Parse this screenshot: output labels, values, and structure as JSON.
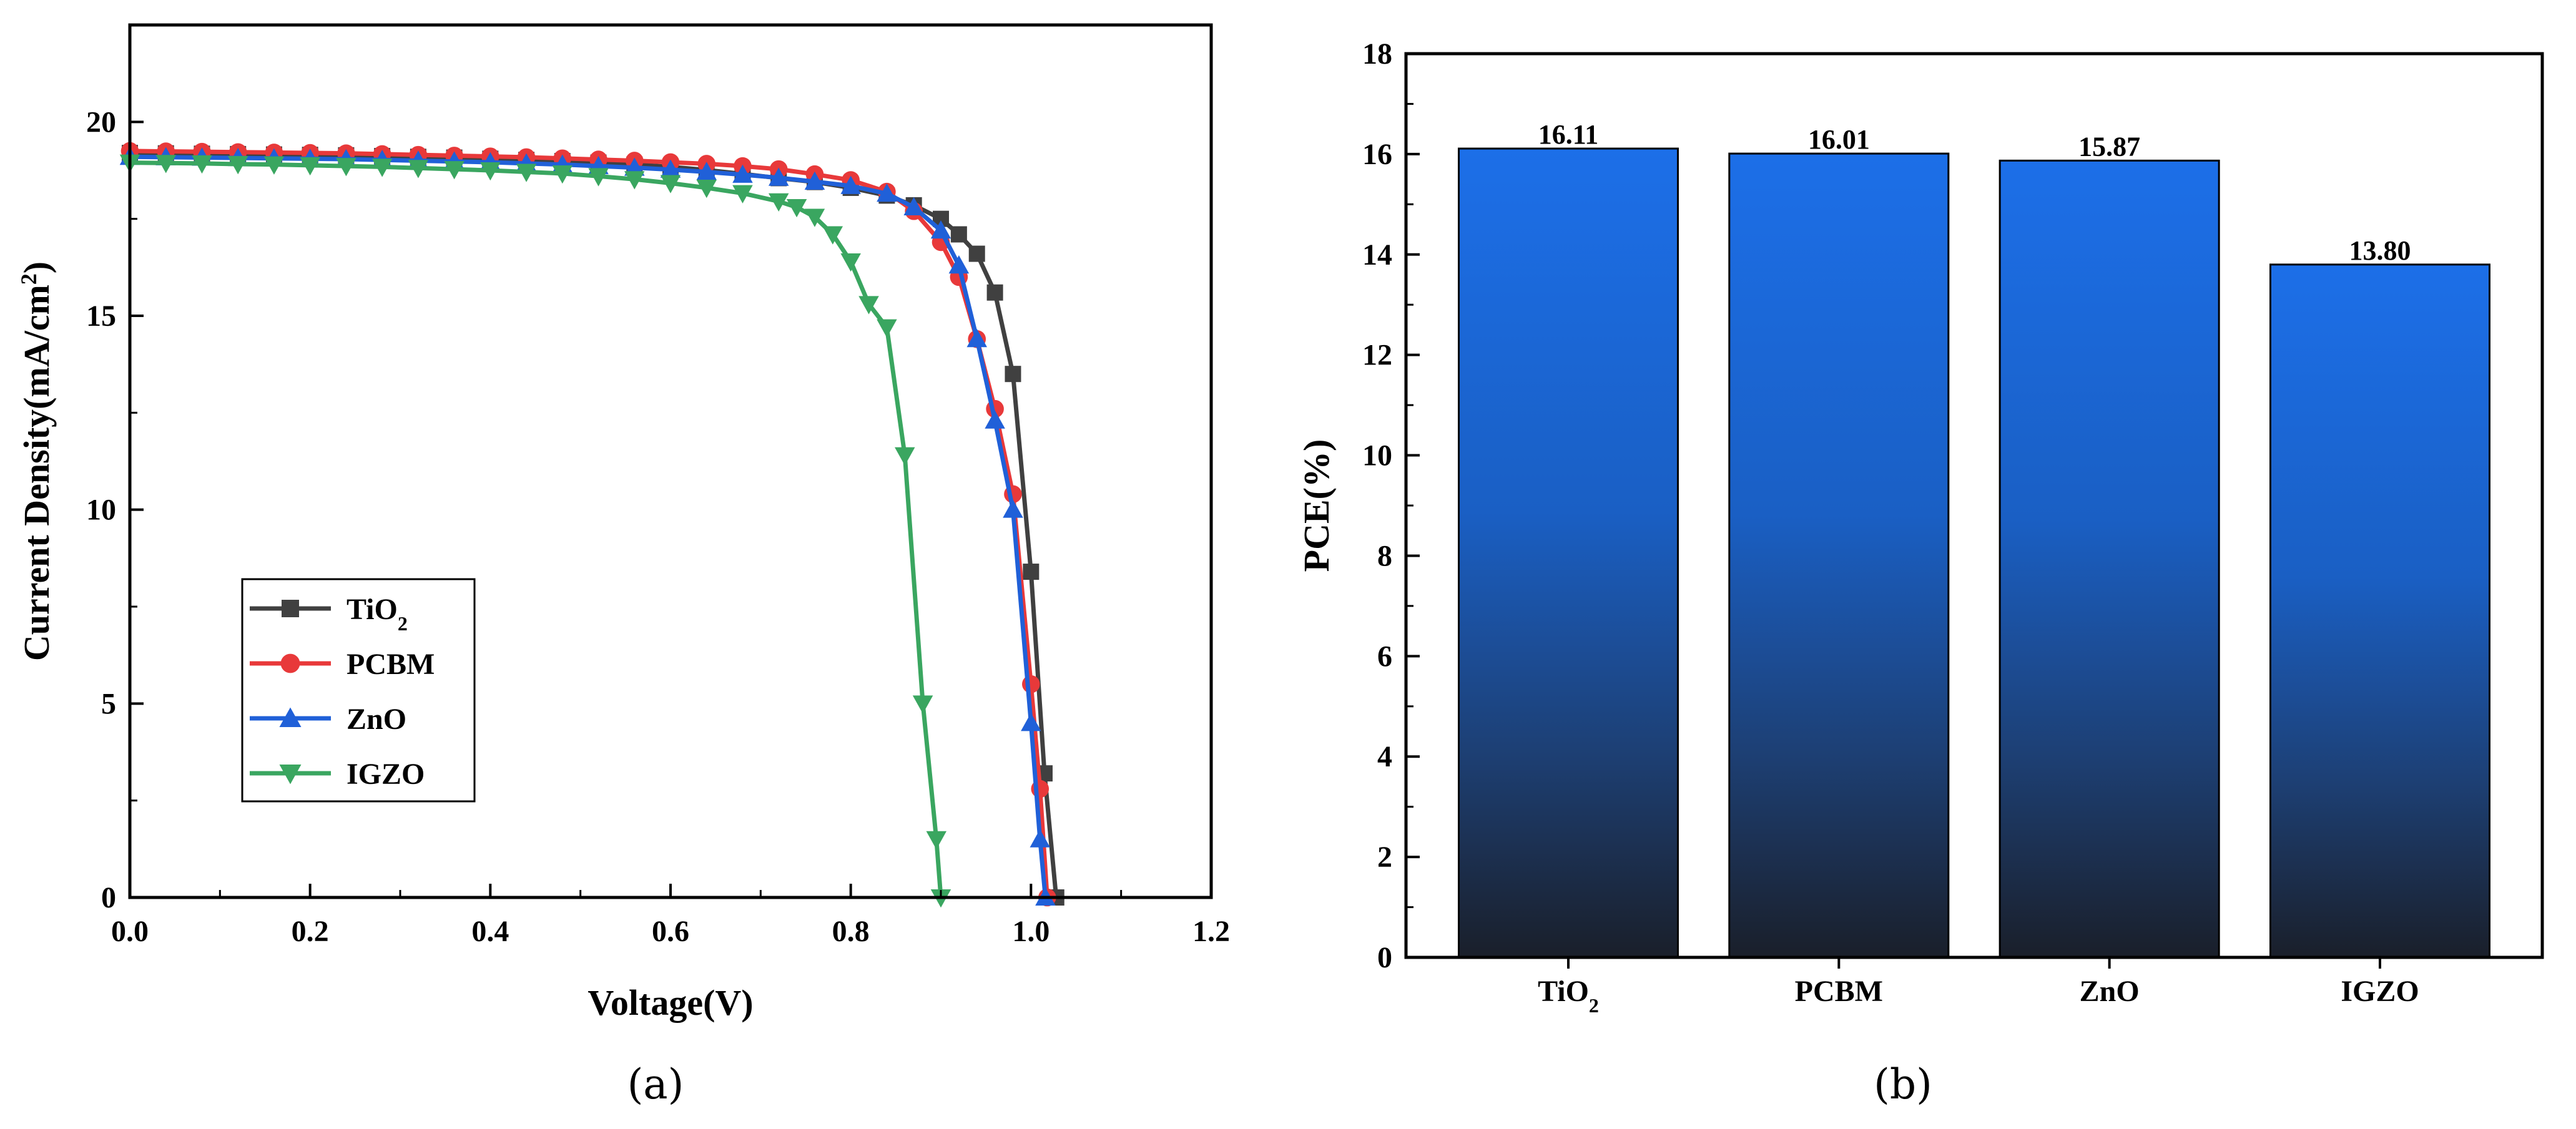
{
  "chart_data": [
    {
      "type": "line",
      "panel": "(a)",
      "xlabel": "Voltage(V)",
      "ylabel": "Current Density(mA/cm²)",
      "ylabel_base": "Current Density(mA/cm",
      "ylabel_sup": "2",
      "ylabel_end": ")",
      "xlim": [
        0.0,
        1.2
      ],
      "ylim": [
        0,
        22.5
      ],
      "xticks": [
        "0.0",
        "0.2",
        "0.4",
        "0.6",
        "0.8",
        "1.0",
        "1.2"
      ],
      "yticks": [
        "0",
        "5",
        "10",
        "15",
        "20"
      ],
      "legend_position": "lower-left",
      "series": [
        {
          "name": "TiO2",
          "label_base": "TiO",
          "label_sub": "2",
          "color": "#404040",
          "marker": "square",
          "x": [
            0.0,
            0.04,
            0.08,
            0.12,
            0.16,
            0.2,
            0.24,
            0.28,
            0.32,
            0.36,
            0.4,
            0.44,
            0.48,
            0.52,
            0.56,
            0.6,
            0.64,
            0.68,
            0.72,
            0.76,
            0.8,
            0.84,
            0.87,
            0.9,
            0.92,
            0.94,
            0.96,
            0.98,
            1.0,
            1.015,
            1.028
          ],
          "y": [
            19.2,
            19.19,
            19.18,
            19.17,
            19.16,
            19.15,
            19.14,
            19.12,
            19.1,
            19.08,
            19.05,
            19.02,
            18.99,
            18.95,
            18.9,
            18.84,
            18.76,
            18.66,
            18.55,
            18.45,
            18.3,
            18.1,
            17.85,
            17.5,
            17.1,
            16.6,
            15.6,
            13.5,
            8.4,
            3.2,
            0.0
          ]
        },
        {
          "name": "PCBM",
          "label_base": "PCBM",
          "label_sub": "",
          "color": "#e8393a",
          "marker": "circle",
          "x": [
            0.0,
            0.04,
            0.08,
            0.12,
            0.16,
            0.2,
            0.24,
            0.28,
            0.32,
            0.36,
            0.4,
            0.44,
            0.48,
            0.52,
            0.56,
            0.6,
            0.64,
            0.68,
            0.72,
            0.76,
            0.8,
            0.84,
            0.87,
            0.9,
            0.92,
            0.94,
            0.96,
            0.98,
            1.0,
            1.01,
            1.018
          ],
          "y": [
            19.25,
            19.24,
            19.23,
            19.22,
            19.21,
            19.2,
            19.19,
            19.17,
            19.15,
            19.13,
            19.11,
            19.09,
            19.06,
            19.03,
            19.0,
            18.96,
            18.92,
            18.86,
            18.78,
            18.65,
            18.5,
            18.2,
            17.7,
            16.9,
            16.0,
            14.4,
            12.6,
            10.4,
            5.5,
            2.8,
            0.0
          ]
        },
        {
          "name": "ZnO",
          "label_base": "ZnO",
          "label_sub": "",
          "color": "#2060d8",
          "marker": "triangle-up",
          "x": [
            0.0,
            0.04,
            0.08,
            0.12,
            0.16,
            0.2,
            0.24,
            0.28,
            0.32,
            0.36,
            0.4,
            0.44,
            0.48,
            0.52,
            0.56,
            0.6,
            0.64,
            0.68,
            0.72,
            0.76,
            0.8,
            0.84,
            0.87,
            0.9,
            0.92,
            0.94,
            0.96,
            0.98,
            1.0,
            1.01,
            1.016
          ],
          "y": [
            19.1,
            19.09,
            19.08,
            19.07,
            19.06,
            19.05,
            19.04,
            19.02,
            19.0,
            18.98,
            18.96,
            18.93,
            18.9,
            18.86,
            18.82,
            18.77,
            18.71,
            18.64,
            18.56,
            18.46,
            18.35,
            18.15,
            17.8,
            17.2,
            16.3,
            14.4,
            12.3,
            10.0,
            4.5,
            1.5,
            0.0
          ]
        },
        {
          "name": "IGZO",
          "label_base": "IGZO",
          "label_sub": "",
          "color": "#3aa660",
          "marker": "triangle-down",
          "x": [
            0.0,
            0.04,
            0.08,
            0.12,
            0.16,
            0.2,
            0.24,
            0.28,
            0.32,
            0.36,
            0.4,
            0.44,
            0.48,
            0.52,
            0.56,
            0.6,
            0.64,
            0.68,
            0.72,
            0.74,
            0.76,
            0.78,
            0.8,
            0.82,
            0.84,
            0.86,
            0.88,
            0.895,
            0.9
          ],
          "y": [
            18.95,
            18.94,
            18.93,
            18.91,
            18.9,
            18.88,
            18.86,
            18.84,
            18.81,
            18.78,
            18.75,
            18.71,
            18.67,
            18.6,
            18.52,
            18.42,
            18.3,
            18.16,
            17.95,
            17.8,
            17.55,
            17.1,
            16.4,
            15.3,
            14.7,
            11.4,
            5.0,
            1.5,
            0.0
          ]
        }
      ]
    },
    {
      "type": "bar",
      "panel": "(b)",
      "xlabel": "",
      "ylabel": "PCE(%)",
      "ylim": [
        0,
        18
      ],
      "yticks": [
        "0",
        "2",
        "4",
        "6",
        "8",
        "10",
        "12",
        "14",
        "16",
        "18"
      ],
      "categories": [
        "TiO2",
        "PCBM",
        "ZnO",
        "IGZO"
      ],
      "category_labels": [
        {
          "base": "TiO",
          "sub": "2"
        },
        {
          "base": "PCBM",
          "sub": ""
        },
        {
          "base": "ZnO",
          "sub": ""
        },
        {
          "base": "IGZO",
          "sub": ""
        }
      ],
      "values": [
        16.11,
        16.01,
        15.87,
        13.8
      ],
      "value_labels": [
        "16.11",
        "16.01",
        "15.87",
        "13.80"
      ],
      "bar_color_top": "#1c6fe8",
      "bar_color_bottom": "#1a1f2a"
    }
  ],
  "captions": {
    "a": "(a)",
    "b": "(b)"
  }
}
